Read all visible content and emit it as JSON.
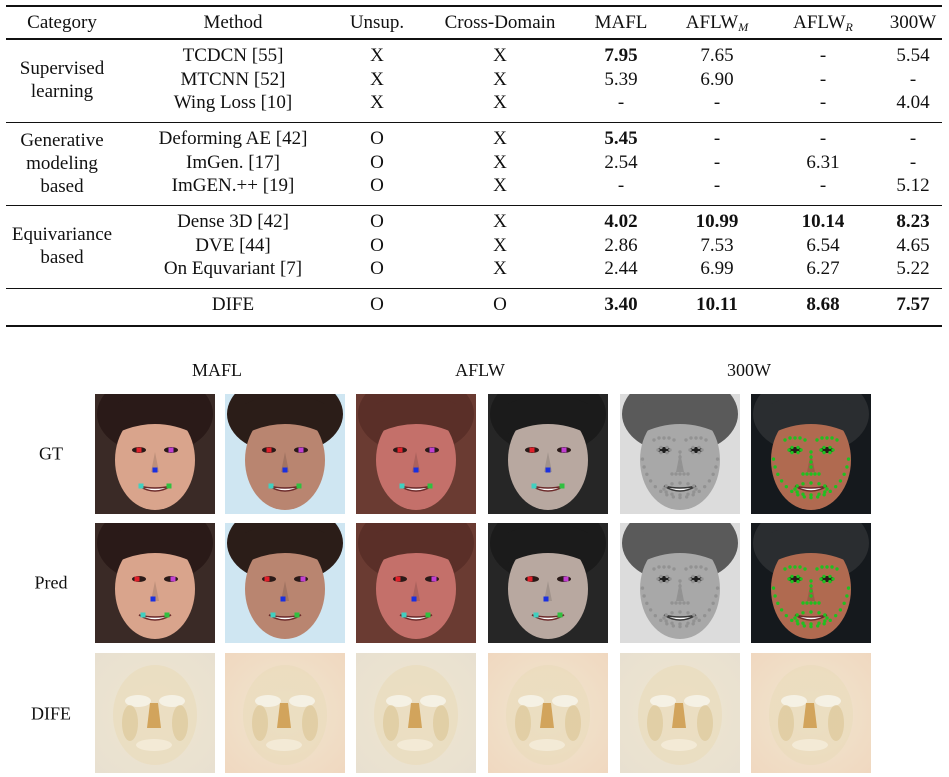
{
  "table": {
    "headers": {
      "category": "Category",
      "method": "Method",
      "unsup": "Unsup.",
      "cross": "Cross-Domain",
      "mafl": "MAFL",
      "aflw_m": "AFLW",
      "aflw_m_sub": "M",
      "aflw_r": "AFLW",
      "aflw_r_sub": "R",
      "w300": "300W"
    },
    "groups": [
      {
        "category_lines": [
          "Supervised",
          "learning"
        ],
        "rows": [
          {
            "method": "TCDCN [55]",
            "unsup": "X",
            "cross": "X",
            "mafl": "7.95",
            "aflw_m": "7.65",
            "aflw_r": "-",
            "w300": "5.54",
            "bold": [
              "mafl"
            ]
          },
          {
            "method": "MTCNN [52]",
            "unsup": "X",
            "cross": "X",
            "mafl": "5.39",
            "aflw_m": "6.90",
            "aflw_r": "-",
            "w300": "-",
            "bold": []
          },
          {
            "method": "Wing Loss [10]",
            "unsup": "X",
            "cross": "X",
            "mafl": "-",
            "aflw_m": "-",
            "aflw_r": "-",
            "w300": "4.04",
            "bold": []
          }
        ]
      },
      {
        "category_lines": [
          "Generative",
          "modeling",
          "based"
        ],
        "rows": [
          {
            "method": "Deforming AE [42]",
            "unsup": "O",
            "cross": "X",
            "mafl": "5.45",
            "aflw_m": "-",
            "aflw_r": "-",
            "w300": "-",
            "bold": [
              "mafl"
            ]
          },
          {
            "method": "ImGen. [17]",
            "unsup": "O",
            "cross": "X",
            "mafl": "2.54",
            "aflw_m": "-",
            "aflw_r": "6.31",
            "w300": "-",
            "bold": []
          },
          {
            "method": "ImGEN.++ [19]",
            "unsup": "O",
            "cross": "X",
            "mafl": "-",
            "aflw_m": "-",
            "aflw_r": "-",
            "w300": "5.12",
            "bold": []
          }
        ]
      },
      {
        "category_lines": [
          "Equivariance",
          "based"
        ],
        "rows": [
          {
            "method": "Dense 3D [42]",
            "unsup": "O",
            "cross": "X",
            "mafl": "4.02",
            "aflw_m": "10.99",
            "aflw_r": "10.14",
            "w300": "8.23",
            "bold": [
              "mafl",
              "aflw_m",
              "aflw_r",
              "w300"
            ]
          },
          {
            "method": "DVE [44]",
            "unsup": "O",
            "cross": "X",
            "mafl": "2.86",
            "aflw_m": "7.53",
            "aflw_r": "6.54",
            "w300": "4.65",
            "bold": []
          },
          {
            "method": "On Equvariant [7]",
            "unsup": "O",
            "cross": "X",
            "mafl": "2.44",
            "aflw_m": "6.99",
            "aflw_r": "6.27",
            "w300": "5.22",
            "bold": []
          }
        ]
      },
      {
        "category_lines": [],
        "rows": [
          {
            "method": "DIFE",
            "unsup": "O",
            "cross": "O",
            "mafl": "3.40",
            "aflw_m": "10.11",
            "aflw_r": "8.68",
            "w300": "7.57",
            "bold": [
              "mafl",
              "aflw_m",
              "aflw_r",
              "w300"
            ]
          }
        ]
      }
    ]
  },
  "figure": {
    "column_headers": [
      "MAFL",
      "AFLW",
      "300W"
    ],
    "row_labels": [
      "GT",
      "Pred",
      "DIFE"
    ],
    "colors": {
      "landmark_red": "#e0202a",
      "landmark_magenta": "#c040d0",
      "landmark_blue": "#1a2fe0",
      "landmark_cyan": "#40d0c0",
      "landmark_green": "#30c040",
      "dense_green": "#20c020"
    }
  }
}
